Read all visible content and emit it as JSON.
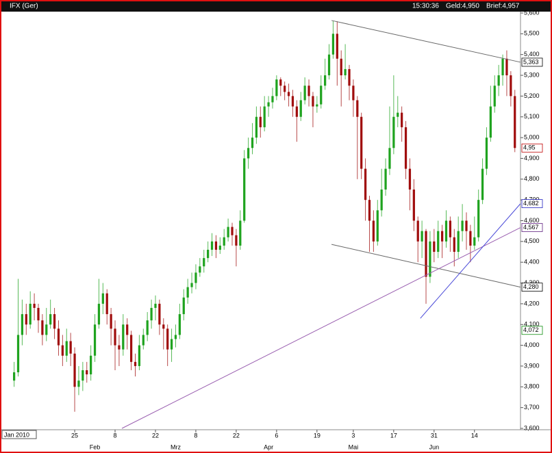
{
  "chart_data": {
    "type": "candlestick",
    "title": "IFX (Ger)",
    "quote": {
      "time": "15:30:36",
      "bid": "Geld:4,950",
      "ask": "Brief:4,957"
    },
    "period_label": "Jan 2010",
    "categories": [
      null,
      null,
      null,
      null,
      null,
      null,
      null,
      null,
      null,
      null,
      null,
      null,
      null,
      null,
      null,
      "25",
      null,
      null,
      null,
      null,
      null,
      null,
      null,
      null,
      null,
      "8",
      null,
      null,
      null,
      null,
      null,
      null,
      null,
      null,
      null,
      "22",
      null,
      null,
      null,
      null,
      null,
      null,
      null,
      null,
      null,
      "8",
      null,
      null,
      null,
      null,
      null,
      null,
      null,
      null,
      null,
      "22",
      null,
      null,
      null,
      null,
      null,
      null,
      null,
      null,
      null,
      "6",
      null,
      null,
      null,
      null,
      null,
      null,
      null,
      null,
      null,
      "19",
      null,
      null,
      null,
      null,
      null,
      null,
      null,
      null,
      "3",
      null,
      null,
      null,
      null,
      null,
      null,
      null,
      null,
      null,
      "17",
      null,
      null,
      null,
      null,
      null,
      null,
      null,
      null,
      null,
      "31",
      null,
      null,
      null,
      null,
      null,
      null,
      null,
      null,
      null,
      "14",
      null,
      null,
      null,
      null,
      null,
      null,
      null,
      null,
      null,
      null
    ],
    "months": [
      null,
      null,
      null,
      null,
      null,
      null,
      null,
      null,
      null,
      null,
      null,
      null,
      null,
      null,
      null,
      null,
      null,
      null,
      null,
      null,
      "Feb",
      null,
      null,
      null,
      null,
      null,
      null,
      null,
      null,
      null,
      null,
      null,
      null,
      null,
      null,
      null,
      null,
      null,
      null,
      null,
      "Mrz",
      null,
      null,
      null,
      null,
      null,
      null,
      null,
      null,
      null,
      null,
      null,
      null,
      null,
      null,
      null,
      null,
      null,
      null,
      null,
      null,
      null,
      null,
      "Apr",
      null,
      null,
      null,
      null,
      null,
      null,
      null,
      null,
      null,
      null,
      null,
      null,
      null,
      null,
      null,
      null,
      null,
      null,
      null,
      null,
      "Mai",
      null,
      null,
      null,
      null,
      null,
      null,
      null,
      null,
      null,
      null,
      null,
      null,
      null,
      null,
      null,
      null,
      null,
      null,
      null,
      "Jun",
      null,
      null,
      null,
      null,
      null,
      null,
      null,
      null,
      null,
      null,
      null,
      null,
      null,
      null,
      null,
      null,
      null,
      null,
      null,
      null
    ],
    "open": [
      3830,
      3870,
      4050,
      4150,
      4100,
      4200,
      4180,
      4120,
      4050,
      4100,
      4150,
      4080,
      4000,
      3950,
      4020,
      3960,
      3800,
      3830,
      3880,
      3860,
      3950,
      4100,
      4200,
      4250,
      4150,
      4080,
      4000,
      3980,
      4100,
      4050,
      3920,
      3900,
      4000,
      4050,
      4120,
      4180,
      4200,
      4100,
      4080,
      3980,
      4030,
      4050,
      4150,
      4230,
      4280,
      4300,
      4350,
      4380,
      4420,
      4460,
      4500,
      4460,
      4480,
      4520,
      4570,
      4530,
      4480,
      4600,
      4900,
      4950,
      5000,
      5100,
      5050,
      5150,
      5170,
      5200,
      5280,
      5250,
      5220,
      5200,
      5150,
      5100,
      5180,
      5250,
      5200,
      5150,
      5160,
      5250,
      5300,
      5400,
      5500,
      5380,
      5300,
      5330,
      5250,
      5180,
      5100,
      4850,
      4700,
      4600,
      4500,
      4650,
      4750,
      4850,
      4950,
      5100,
      5120,
      5050,
      4850,
      4750,
      4600,
      4500,
      4550,
      4330,
      4500,
      4450,
      4550,
      4500,
      4600,
      4520,
      4450,
      4550,
      4600,
      4550,
      4480,
      4520,
      4700,
      4850,
      5000,
      5150,
      5250,
      5300,
      5380,
      5300,
      5200
    ],
    "high": [
      3920,
      4320,
      4220,
      4200,
      4260,
      4250,
      4200,
      4150,
      4180,
      4220,
      4180,
      4120,
      4050,
      4080,
      4060,
      3990,
      3900,
      3920,
      3920,
      4000,
      4150,
      4320,
      4300,
      4270,
      4180,
      4120,
      4050,
      4150,
      4130,
      4070,
      3960,
      4050,
      4080,
      4160,
      4220,
      4240,
      4220,
      4130,
      4100,
      4080,
      4100,
      4200,
      4270,
      4320,
      4350,
      4390,
      4420,
      4460,
      4500,
      4540,
      4530,
      4520,
      4560,
      4610,
      4590,
      4560,
      4650,
      4940,
      5000,
      5070,
      5150,
      5150,
      5200,
      5200,
      5240,
      5300,
      5290,
      5270,
      5260,
      5230,
      5180,
      5220,
      5290,
      5280,
      5220,
      5200,
      5300,
      5380,
      5450,
      5560,
      5560,
      5420,
      5450,
      5350,
      5280,
      5200,
      5120,
      4900,
      4720,
      4650,
      4700,
      4850,
      4900,
      5150,
      5300,
      5200,
      5150,
      5080,
      4900,
      4800,
      4620,
      4600,
      4560,
      4550,
      4560,
      4600,
      4580,
      4650,
      4620,
      4560,
      4620,
      4680,
      4640,
      4580,
      4620,
      4750,
      4900,
      5050,
      5250,
      5300,
      5350,
      5400,
      5420,
      5320,
      5230
    ],
    "low": [
      3800,
      3850,
      4000,
      4050,
      4080,
      4120,
      4060,
      4000,
      4020,
      4080,
      4030,
      3950,
      3900,
      3920,
      3900,
      3680,
      3760,
      3780,
      3820,
      3830,
      3920,
      4080,
      4150,
      4100,
      4000,
      3880,
      3900,
      3950,
      3980,
      3880,
      3850,
      3880,
      3980,
      4020,
      4080,
      4120,
      4050,
      3980,
      3900,
      3920,
      3990,
      4030,
      4120,
      4200,
      4250,
      4270,
      4330,
      4350,
      4400,
      4430,
      4420,
      4440,
      4460,
      4500,
      4480,
      4380,
      4460,
      4590,
      4850,
      4920,
      4970,
      5000,
      5030,
      5100,
      5140,
      5180,
      5200,
      5180,
      5150,
      5100,
      4980,
      5080,
      5160,
      5150,
      5050,
      5120,
      5140,
      5230,
      5280,
      5380,
      5250,
      5150,
      5280,
      5180,
      5100,
      4800,
      4800,
      4600,
      4450,
      4450,
      4480,
      4620,
      4720,
      4820,
      4920,
      5050,
      4980,
      4800,
      4650,
      4550,
      4400,
      4420,
      4200,
      4300,
      4400,
      4420,
      4420,
      4470,
      4450,
      4380,
      4420,
      4500,
      4460,
      4400,
      4460,
      4500,
      4680,
      4820,
      4980,
      5120,
      5200,
      5250,
      5200,
      5150,
      4930
    ],
    "close": [
      3870,
      4050,
      4150,
      4100,
      4200,
      4180,
      4120,
      4050,
      4100,
      4150,
      4080,
      4000,
      3950,
      4020,
      3960,
      3800,
      3830,
      3880,
      3860,
      3950,
      4100,
      4200,
      4250,
      4150,
      4080,
      4000,
      3980,
      4100,
      4050,
      3920,
      3900,
      4000,
      4050,
      4120,
      4180,
      4200,
      4100,
      4080,
      3980,
      4030,
      4050,
      4150,
      4230,
      4280,
      4300,
      4350,
      4380,
      4420,
      4460,
      4500,
      4460,
      4480,
      4520,
      4570,
      4530,
      4480,
      4600,
      4900,
      4950,
      5000,
      5100,
      5050,
      5150,
      5170,
      5200,
      5280,
      5250,
      5220,
      5200,
      5150,
      5100,
      5180,
      5250,
      5200,
      5150,
      5160,
      5250,
      5300,
      5400,
      5500,
      5380,
      5300,
      5330,
      5250,
      5180,
      5100,
      4850,
      4700,
      4600,
      4500,
      4650,
      4750,
      4850,
      4950,
      5100,
      5120,
      5050,
      4850,
      4750,
      4600,
      4500,
      4550,
      4330,
      4500,
      4450,
      4550,
      4500,
      4600,
      4520,
      4450,
      4550,
      4600,
      4550,
      4480,
      4520,
      4700,
      4850,
      5000,
      5150,
      5250,
      5300,
      5380,
      5300,
      5200,
      4950
    ],
    "up_color": "#1fa31f",
    "down_color": "#a00d0d",
    "xlim": [
      -1.8,
      125.4
    ],
    "ylim": [
      3600,
      5600
    ],
    "yticks": [
      {
        "value": 3600,
        "label": "3,600"
      },
      {
        "value": 3700,
        "label": "3,700"
      },
      {
        "value": 3800,
        "label": "3,800"
      },
      {
        "value": 3900,
        "label": "3,900"
      },
      {
        "value": 4000,
        "label": "4,000"
      },
      {
        "value": 4100,
        "label": "4,100"
      },
      {
        "value": 4200,
        "label": "4,200"
      },
      {
        "value": 4300,
        "label": "4,300"
      },
      {
        "value": 4400,
        "label": "4,400"
      },
      {
        "value": 4500,
        "label": "4,500"
      },
      {
        "value": 4600,
        "label": "4,600"
      },
      {
        "value": 4700,
        "label": "4,700"
      },
      {
        "value": 4800,
        "label": "4,800"
      },
      {
        "value": 4900,
        "label": "4,900"
      },
      {
        "value": 5000,
        "label": "5,000"
      },
      {
        "value": 5100,
        "label": "5,100"
      },
      {
        "value": 5200,
        "label": "5,200"
      },
      {
        "value": 5300,
        "label": "5,300"
      },
      {
        "value": 5400,
        "label": "5,400"
      },
      {
        "value": 5500,
        "label": "5,500"
      },
      {
        "value": 5600,
        "label": "5,600"
      }
    ],
    "trend_lines": [
      {
        "x": [
          78.6,
          125.4
        ],
        "y": [
          5564,
          5363
        ],
        "color": "#666666"
      },
      {
        "x": [
          78.6,
          125.4
        ],
        "y": [
          4486,
          4280
        ],
        "color": "#666666"
      },
      {
        "x": [
          26.7,
          125.4
        ],
        "y": [
          3600,
          4567
        ],
        "color": "#9a5fb0"
      },
      {
        "x": [
          100.6,
          125.4
        ],
        "y": [
          4130,
          4682
        ],
        "color": "#4a4ad8"
      }
    ],
    "price_tags": [
      {
        "label": "5,363",
        "value": 5363,
        "color": "#000000"
      },
      {
        "label": "4,95",
        "value": 4950,
        "color": "#c00000"
      },
      {
        "label": "4,682",
        "value": 4682,
        "color": "#2020c0"
      },
      {
        "label": "4,567",
        "value": 4567,
        "color": "#602080"
      },
      {
        "label": "4,280",
        "value": 4280,
        "color": "#000000"
      },
      {
        "label": "4,072",
        "value": 4072,
        "color": "#109010"
      }
    ]
  }
}
